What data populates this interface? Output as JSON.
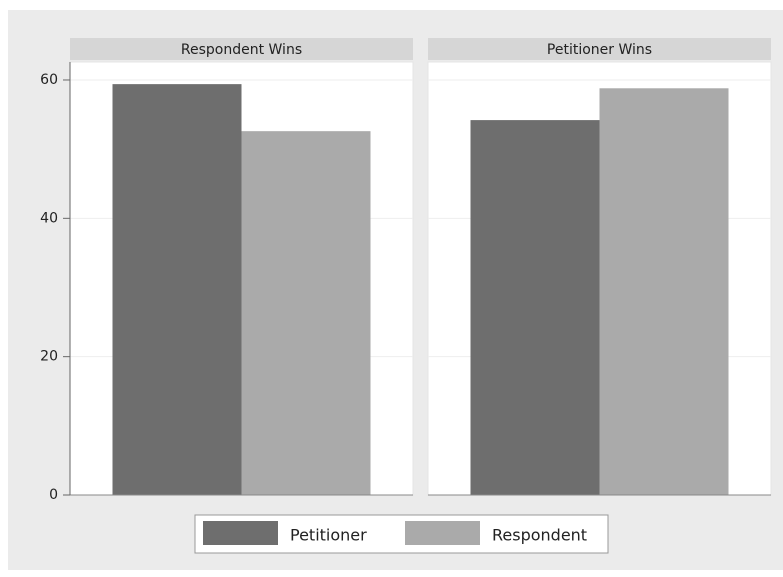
{
  "chart_data": {
    "type": "bar",
    "categories": [
      "Respondent Wins",
      "Petitioner Wins"
    ],
    "series": [
      {
        "name": "Petitioner",
        "color": "#6e6e6e",
        "values": [
          59.4,
          54.2
        ]
      },
      {
        "name": "Respondent",
        "color": "#aaaaaa",
        "values": [
          52.6,
          58.8
        ]
      }
    ],
    "ylim": [
      0,
      62.6
    ],
    "yticks": [
      0,
      20,
      40,
      60
    ],
    "grid": true
  }
}
